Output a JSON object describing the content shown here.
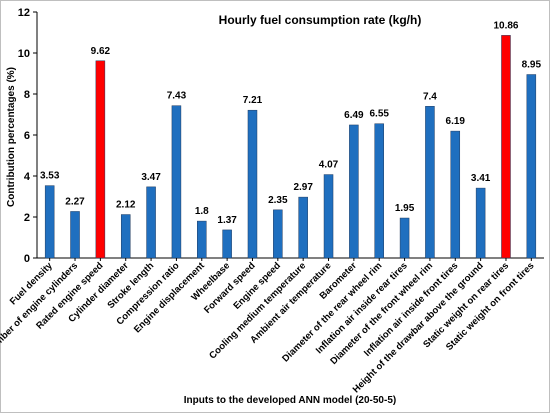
{
  "chart_data": {
    "type": "bar",
    "title": "Hourly fuel consumption rate (kg/h)",
    "xlabel": "Inputs to the developed ANN model (20-50-5)",
    "ylabel": "Contribution percentages  (%)",
    "ylim": [
      0,
      12
    ],
    "yticks": [
      "0",
      "2",
      "4",
      "6",
      "8",
      "10",
      "12"
    ],
    "grid": false,
    "categories": [
      "Fuel density",
      "Number of engine cylinders",
      "Rated engine speed",
      "Cylinder diameter",
      "Stroke length",
      "Compression ratio",
      "Engine displacement",
      "Wheelbase",
      "Forward speed",
      "Engine speed",
      "Cooling medium temperature",
      "Ambient air temperature",
      "Barometer",
      "Diameter of the rear wheel rim",
      "Inflation air inside rear tires",
      "Diameter of the front wheel rim",
      "Inflation air inside front tires",
      "Height of the drawbar above the ground",
      "Static weight on rear tires",
      "Static weight on front tires"
    ],
    "values": [
      3.53,
      2.27,
      9.62,
      2.12,
      3.47,
      7.43,
      1.8,
      1.37,
      7.21,
      2.35,
      2.97,
      4.07,
      6.49,
      6.55,
      1.95,
      7.4,
      6.19,
      3.41,
      10.86,
      8.95
    ],
    "value_labels": [
      "3.53",
      "2.27",
      "9.62",
      "2.12",
      "3.47",
      "7.43",
      "1.8",
      "1.37",
      "7.21",
      "2.35",
      "2.97",
      "4.07",
      "6.49",
      "6.55",
      "1.95",
      "7.4",
      "6.19",
      "3.41",
      "10.86",
      "8.95"
    ],
    "bar_color": "#1f6fbf",
    "highlight_color": "#ff0000",
    "highlight_indices": [
      2,
      18
    ]
  }
}
